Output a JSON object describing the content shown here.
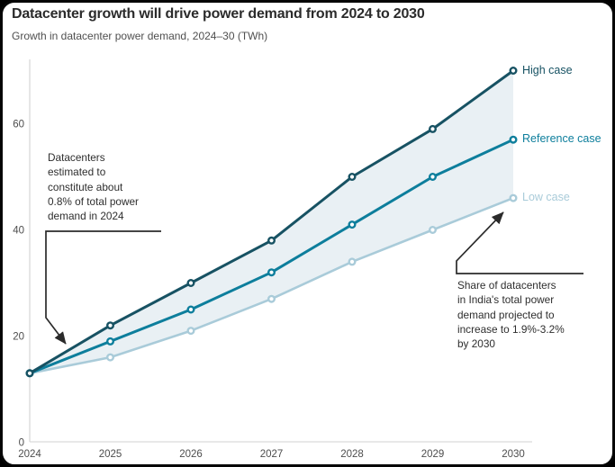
{
  "header": {
    "title": "Datacenter growth will drive power demand from 2024 to 2030",
    "subtitle": "Growth in datacenter power demand, 2024–30 (TWh)"
  },
  "chart_data": {
    "type": "line",
    "x": [
      2024,
      2025,
      2026,
      2027,
      2028,
      2029,
      2030
    ],
    "x_tick_labels": [
      "2024",
      "2025",
      "2026",
      "2027",
      "2028",
      "2029",
      "2030"
    ],
    "yticks": [
      0,
      20,
      40,
      60
    ],
    "ylim": [
      0,
      72
    ],
    "xlabel": "",
    "ylabel": "TWh",
    "grid": false,
    "legend_position": "right of 2030 line endpoints",
    "series": [
      {
        "name": "High case",
        "color": "#175263",
        "values": [
          13,
          22,
          30,
          38,
          50,
          59,
          70
        ]
      },
      {
        "name": "Reference case",
        "color": "#0d7e9c",
        "values": [
          13,
          19,
          25,
          32,
          41,
          50,
          57
        ]
      },
      {
        "name": "Low case",
        "color": "#a9cbd9",
        "values": [
          13,
          16,
          21,
          27,
          34,
          40,
          46
        ]
      }
    ],
    "band": {
      "between": [
        "High case",
        "Low case"
      ],
      "color": "#e9f0f4"
    },
    "annotations": [
      {
        "lines": [
          "Datacenters",
          "estimated to",
          "constitute about",
          "0.8% of total power",
          "demand in 2024"
        ],
        "points_to": "High case line near 2024"
      },
      {
        "lines": [
          "Share of datacenters",
          "in India's total power",
          "demand projected to",
          "increase to 1.9%-3.2%",
          "by 2030"
        ],
        "points_to": "Low case 2030 endpoint"
      }
    ]
  },
  "colors": {
    "background": "#ffffff",
    "frame_border": "#050505",
    "title_text": "#2b2b2b",
    "subtitle_text": "#4f4f4f",
    "axis_line": "#d9d9d9",
    "tick_text": "#4d4d4d",
    "annotation_text": "#2e2e2e",
    "connector": "#2b2b2b",
    "band_fill": "#e9f0f4",
    "marker_fill": "#ffffff"
  }
}
